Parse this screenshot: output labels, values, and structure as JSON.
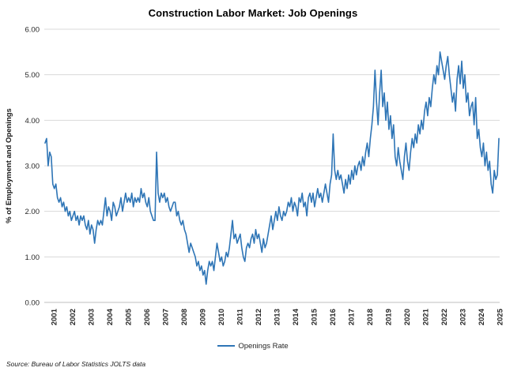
{
  "chart_data": {
    "type": "line",
    "title": "Construction Labor Market: Job Openings",
    "ylabel": "% of Employment and Openings",
    "xlabel": "",
    "source": "Source: Bureau of Labor Statistics JOLTS data",
    "legend": [
      "Openings Rate"
    ],
    "legend_position": "bottom-center",
    "grid": "horizontal",
    "ylim": [
      0,
      6
    ],
    "y_tick_labels": [
      "0.00",
      "1.00",
      "2.00",
      "3.00",
      "4.00",
      "5.00",
      "6.00"
    ],
    "x_tick_labels": [
      "2001",
      "2002",
      "2003",
      "2004",
      "2005",
      "2006",
      "2007",
      "2008",
      "2009",
      "2010",
      "2011",
      "2012",
      "2013",
      "2014",
      "2015",
      "2016",
      "2017",
      "2018",
      "2019",
      "2020",
      "2021",
      "2022",
      "2023",
      "2024",
      "2025"
    ],
    "x_start": "2001-01",
    "x_end": "2025-06",
    "frequency": "monthly",
    "line_color": "#2E75B6",
    "grid_color": "#D9D9D9",
    "series": [
      {
        "name": "Openings Rate",
        "values": [
          3.5,
          3.6,
          3.0,
          3.3,
          3.2,
          2.6,
          2.5,
          2.6,
          2.3,
          2.2,
          2.3,
          2.1,
          2.2,
          2.0,
          2.1,
          1.9,
          2.0,
          1.8,
          1.9,
          2.0,
          1.8,
          1.9,
          1.7,
          1.9,
          1.8,
          1.9,
          1.7,
          1.6,
          1.8,
          1.5,
          1.7,
          1.6,
          1.3,
          1.6,
          1.8,
          1.7,
          1.8,
          1.7,
          2.0,
          2.3,
          1.9,
          2.1,
          2.0,
          1.8,
          2.2,
          2.1,
          1.9,
          2.0,
          2.1,
          2.3,
          2.0,
          2.2,
          2.4,
          2.2,
          2.3,
          2.2,
          2.4,
          2.1,
          2.3,
          2.2,
          2.3,
          2.2,
          2.5,
          2.3,
          2.4,
          2.2,
          2.1,
          2.3,
          2.0,
          1.9,
          1.8,
          1.8,
          3.3,
          2.4,
          2.2,
          2.4,
          2.3,
          2.4,
          2.2,
          2.3,
          2.1,
          2.0,
          2.1,
          2.2,
          2.2,
          1.9,
          2.0,
          1.8,
          1.7,
          1.8,
          1.6,
          1.5,
          1.3,
          1.1,
          1.3,
          1.2,
          1.1,
          1.0,
          0.8,
          0.9,
          0.7,
          0.8,
          0.6,
          0.7,
          0.4,
          0.7,
          0.9,
          0.8,
          0.9,
          0.7,
          1.0,
          1.3,
          1.1,
          0.9,
          1.0,
          0.8,
          0.9,
          1.1,
          1.0,
          1.2,
          1.5,
          1.8,
          1.4,
          1.5,
          1.3,
          1.4,
          1.5,
          1.2,
          1.0,
          0.9,
          1.2,
          1.3,
          1.2,
          1.4,
          1.5,
          1.3,
          1.6,
          1.4,
          1.5,
          1.3,
          1.1,
          1.4,
          1.2,
          1.3,
          1.5,
          1.7,
          1.9,
          1.6,
          1.8,
          2.0,
          1.8,
          2.1,
          1.9,
          1.8,
          2.0,
          1.9,
          2.0,
          2.2,
          2.1,
          2.3,
          2.0,
          2.2,
          2.1,
          1.9,
          2.3,
          2.2,
          2.4,
          2.1,
          2.2,
          1.9,
          2.3,
          2.4,
          2.2,
          2.4,
          2.1,
          2.3,
          2.5,
          2.3,
          2.4,
          2.2,
          2.4,
          2.6,
          2.4,
          2.2,
          2.6,
          2.8,
          3.7,
          2.9,
          2.7,
          2.9,
          2.7,
          2.8,
          2.6,
          2.4,
          2.7,
          2.5,
          2.8,
          2.6,
          2.9,
          2.7,
          3.0,
          2.8,
          3.0,
          3.1,
          2.9,
          3.2,
          3.0,
          3.3,
          3.5,
          3.2,
          3.6,
          3.9,
          4.3,
          5.1,
          4.4,
          3.9,
          4.6,
          5.1,
          4.3,
          4.6,
          4.0,
          4.4,
          3.8,
          4.1,
          3.6,
          3.9,
          3.2,
          3.0,
          3.4,
          3.1,
          2.9,
          2.7,
          3.2,
          3.5,
          3.1,
          2.9,
          3.3,
          3.6,
          3.4,
          3.7,
          3.5,
          3.9,
          3.7,
          4.0,
          3.8,
          4.2,
          4.4,
          4.1,
          4.5,
          4.3,
          4.7,
          5.0,
          4.8,
          5.2,
          5.0,
          5.5,
          5.3,
          5.1,
          4.9,
          5.2,
          5.4,
          5.0,
          4.7,
          4.4,
          4.6,
          4.2,
          4.9,
          5.2,
          4.8,
          5.3,
          4.7,
          5.0,
          4.4,
          4.6,
          4.1,
          4.3,
          4.4,
          3.9,
          4.5,
          3.6,
          3.8,
          3.4,
          3.2,
          3.5,
          3.0,
          3.3,
          2.9,
          3.1,
          2.6,
          2.4,
          2.9,
          2.7,
          2.8,
          3.6
        ]
      }
    ]
  }
}
